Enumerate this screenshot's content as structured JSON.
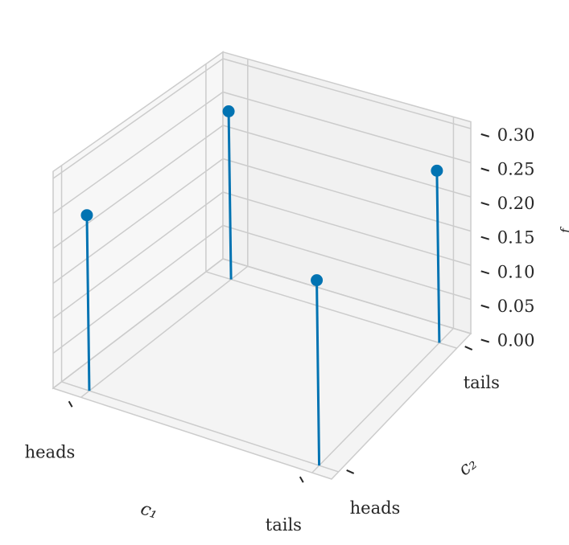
{
  "chart_data": {
    "type": "3d-stem",
    "title": "",
    "xlabel": "c₁",
    "ylabel": "c₂",
    "zlabel": "f",
    "x_categories": [
      "heads",
      "tails"
    ],
    "y_categories": [
      "heads",
      "tails"
    ],
    "zlim": [
      0,
      0.3
    ],
    "z_ticks": [
      "0.00",
      "0.05",
      "0.10",
      "0.15",
      "0.20",
      "0.25",
      "0.30"
    ],
    "points": [
      {
        "c1": "heads",
        "c2": "heads",
        "f": 0.25
      },
      {
        "c1": "tails",
        "c2": "heads",
        "f": 0.25
      },
      {
        "c1": "tails",
        "c2": "tails",
        "f": 0.25
      },
      {
        "c1": "heads",
        "c2": "tails",
        "f": 0.25
      }
    ],
    "grid": true,
    "colors": {
      "stem": "#0173b2",
      "grid": "#cccccc",
      "pane": "#f2f2f2"
    }
  }
}
